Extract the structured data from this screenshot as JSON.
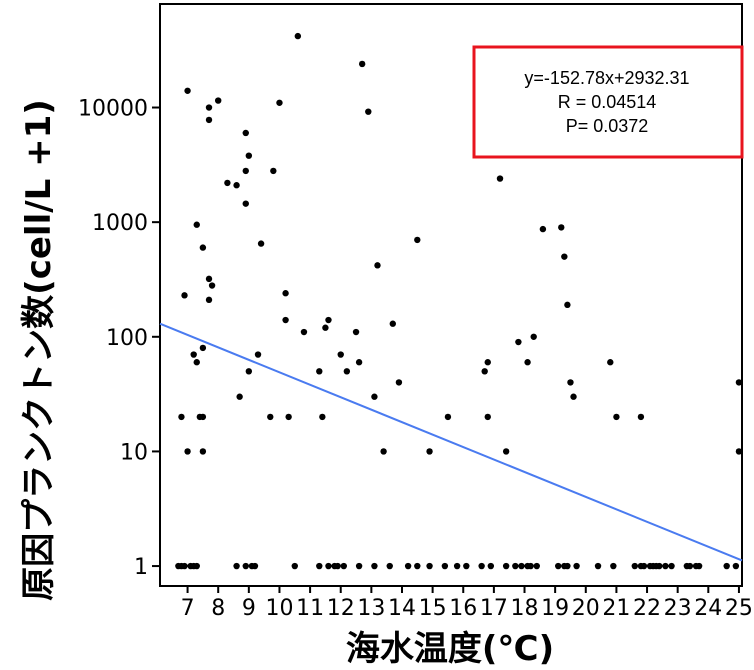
{
  "chart_data": {
    "type": "scatter",
    "xlabel": "海水温度(℃)",
    "ylabel": "原因プランクトン数(cell/L +1)",
    "y_scale": "log",
    "xlim": [
      6.1,
      25.1
    ],
    "ylim": [
      0.67,
      80000
    ],
    "x_ticks": [
      7,
      8,
      9,
      10,
      11,
      12,
      13,
      14,
      15,
      16,
      17,
      18,
      19,
      20,
      21,
      22,
      23,
      24,
      25
    ],
    "y_ticks": [
      1,
      10,
      100,
      1000,
      10000
    ],
    "annotation": {
      "lines": [
        "y=-152.78x+2932.31",
        "R = 0.04514",
        "P= 0.0372"
      ],
      "border_color": "#e8141e"
    },
    "trend_line": {
      "color": "#4a7bf0",
      "points": [
        [
          6.1,
          130
        ],
        [
          25.1,
          1.12
        ]
      ]
    },
    "point_color": "#000000",
    "points": [
      [
        6.7,
        1
      ],
      [
        6.8,
        1
      ],
      [
        6.9,
        1
      ],
      [
        7.1,
        1
      ],
      [
        7.2,
        1
      ],
      [
        7.3,
        1
      ],
      [
        8.6,
        1
      ],
      [
        8.9,
        1
      ],
      [
        9.1,
        1
      ],
      [
        9.2,
        1
      ],
      [
        10.5,
        1
      ],
      [
        11.3,
        1
      ],
      [
        11.6,
        1
      ],
      [
        11.8,
        1
      ],
      [
        11.9,
        1
      ],
      [
        12.1,
        1
      ],
      [
        12.6,
        1
      ],
      [
        13.1,
        1
      ],
      [
        13.6,
        1
      ],
      [
        14.2,
        1
      ],
      [
        14.5,
        1
      ],
      [
        14.9,
        1
      ],
      [
        15.4,
        1
      ],
      [
        15.8,
        1
      ],
      [
        16.1,
        1
      ],
      [
        16.6,
        1
      ],
      [
        16.9,
        1
      ],
      [
        17.4,
        1
      ],
      [
        17.7,
        1
      ],
      [
        17.9,
        1
      ],
      [
        18.1,
        1
      ],
      [
        18.2,
        1
      ],
      [
        18.4,
        1
      ],
      [
        19.1,
        1
      ],
      [
        19.3,
        1
      ],
      [
        19.4,
        1
      ],
      [
        19.7,
        1
      ],
      [
        20.4,
        1
      ],
      [
        20.9,
        1
      ],
      [
        21.6,
        1
      ],
      [
        21.8,
        1
      ],
      [
        21.9,
        1
      ],
      [
        22.1,
        1
      ],
      [
        22.2,
        1
      ],
      [
        22.3,
        1
      ],
      [
        22.4,
        1
      ],
      [
        22.6,
        1
      ],
      [
        22.8,
        1
      ],
      [
        23.3,
        1
      ],
      [
        23.4,
        1
      ],
      [
        23.6,
        1
      ],
      [
        23.7,
        1
      ],
      [
        24.6,
        1
      ],
      [
        24.9,
        1
      ],
      [
        6.8,
        20
      ],
      [
        7.0,
        10
      ],
      [
        7.4,
        20
      ],
      [
        7.5,
        20
      ],
      [
        7.5,
        10
      ],
      [
        12.2,
        50
      ],
      [
        13.1,
        30
      ],
      [
        13.4,
        10
      ],
      [
        14.9,
        10
      ],
      [
        15.5,
        20
      ],
      [
        16.8,
        20
      ],
      [
        17.4,
        10
      ],
      [
        19.6,
        30
      ],
      [
        21.0,
        20
      ],
      [
        21.8,
        20
      ],
      [
        25.0,
        10
      ],
      [
        8.7,
        30
      ],
      [
        9.0,
        50
      ],
      [
        9.3,
        70
      ],
      [
        9.7,
        20
      ],
      [
        10.3,
        20
      ],
      [
        11.3,
        50
      ],
      [
        11.4,
        20
      ],
      [
        12.0,
        70
      ],
      [
        12.6,
        60
      ],
      [
        13.9,
        40
      ],
      [
        16.7,
        50
      ],
      [
        16.8,
        60
      ],
      [
        17.8,
        90
      ],
      [
        18.1,
        60
      ],
      [
        18.3,
        100
      ],
      [
        19.5,
        40
      ],
      [
        20.8,
        60
      ],
      [
        25.0,
        40
      ],
      [
        6.9,
        230
      ],
      [
        7.2,
        70
      ],
      [
        7.3,
        60
      ],
      [
        7.5,
        80
      ],
      [
        7.5,
        600
      ],
      [
        7.7,
        210
      ],
      [
        7.7,
        320
      ],
      [
        7.8,
        280
      ],
      [
        7.3,
        950
      ],
      [
        9.4,
        650
      ],
      [
        10.2,
        240
      ],
      [
        10.2,
        140
      ],
      [
        10.8,
        110
      ],
      [
        11.5,
        120
      ],
      [
        11.6,
        140
      ],
      [
        12.5,
        110
      ],
      [
        13.2,
        420
      ],
      [
        13.7,
        130
      ],
      [
        14.5,
        700
      ],
      [
        18.6,
        870
      ],
      [
        19.2,
        900
      ],
      [
        19.3,
        500
      ],
      [
        19.4,
        190
      ],
      [
        7.0,
        14000
      ],
      [
        7.7,
        10000
      ],
      [
        7.7,
        7800
      ],
      [
        8.0,
        11500
      ],
      [
        8.3,
        2200
      ],
      [
        8.6,
        2100
      ],
      [
        8.9,
        6000
      ],
      [
        9.0,
        3800
      ],
      [
        8.9,
        2800
      ],
      [
        8.9,
        1450
      ],
      [
        9.8,
        2800
      ],
      [
        10.0,
        11000
      ],
      [
        10.6,
        42000
      ],
      [
        12.7,
        24000
      ],
      [
        12.9,
        9200
      ],
      [
        17.2,
        2400
      ]
    ]
  }
}
